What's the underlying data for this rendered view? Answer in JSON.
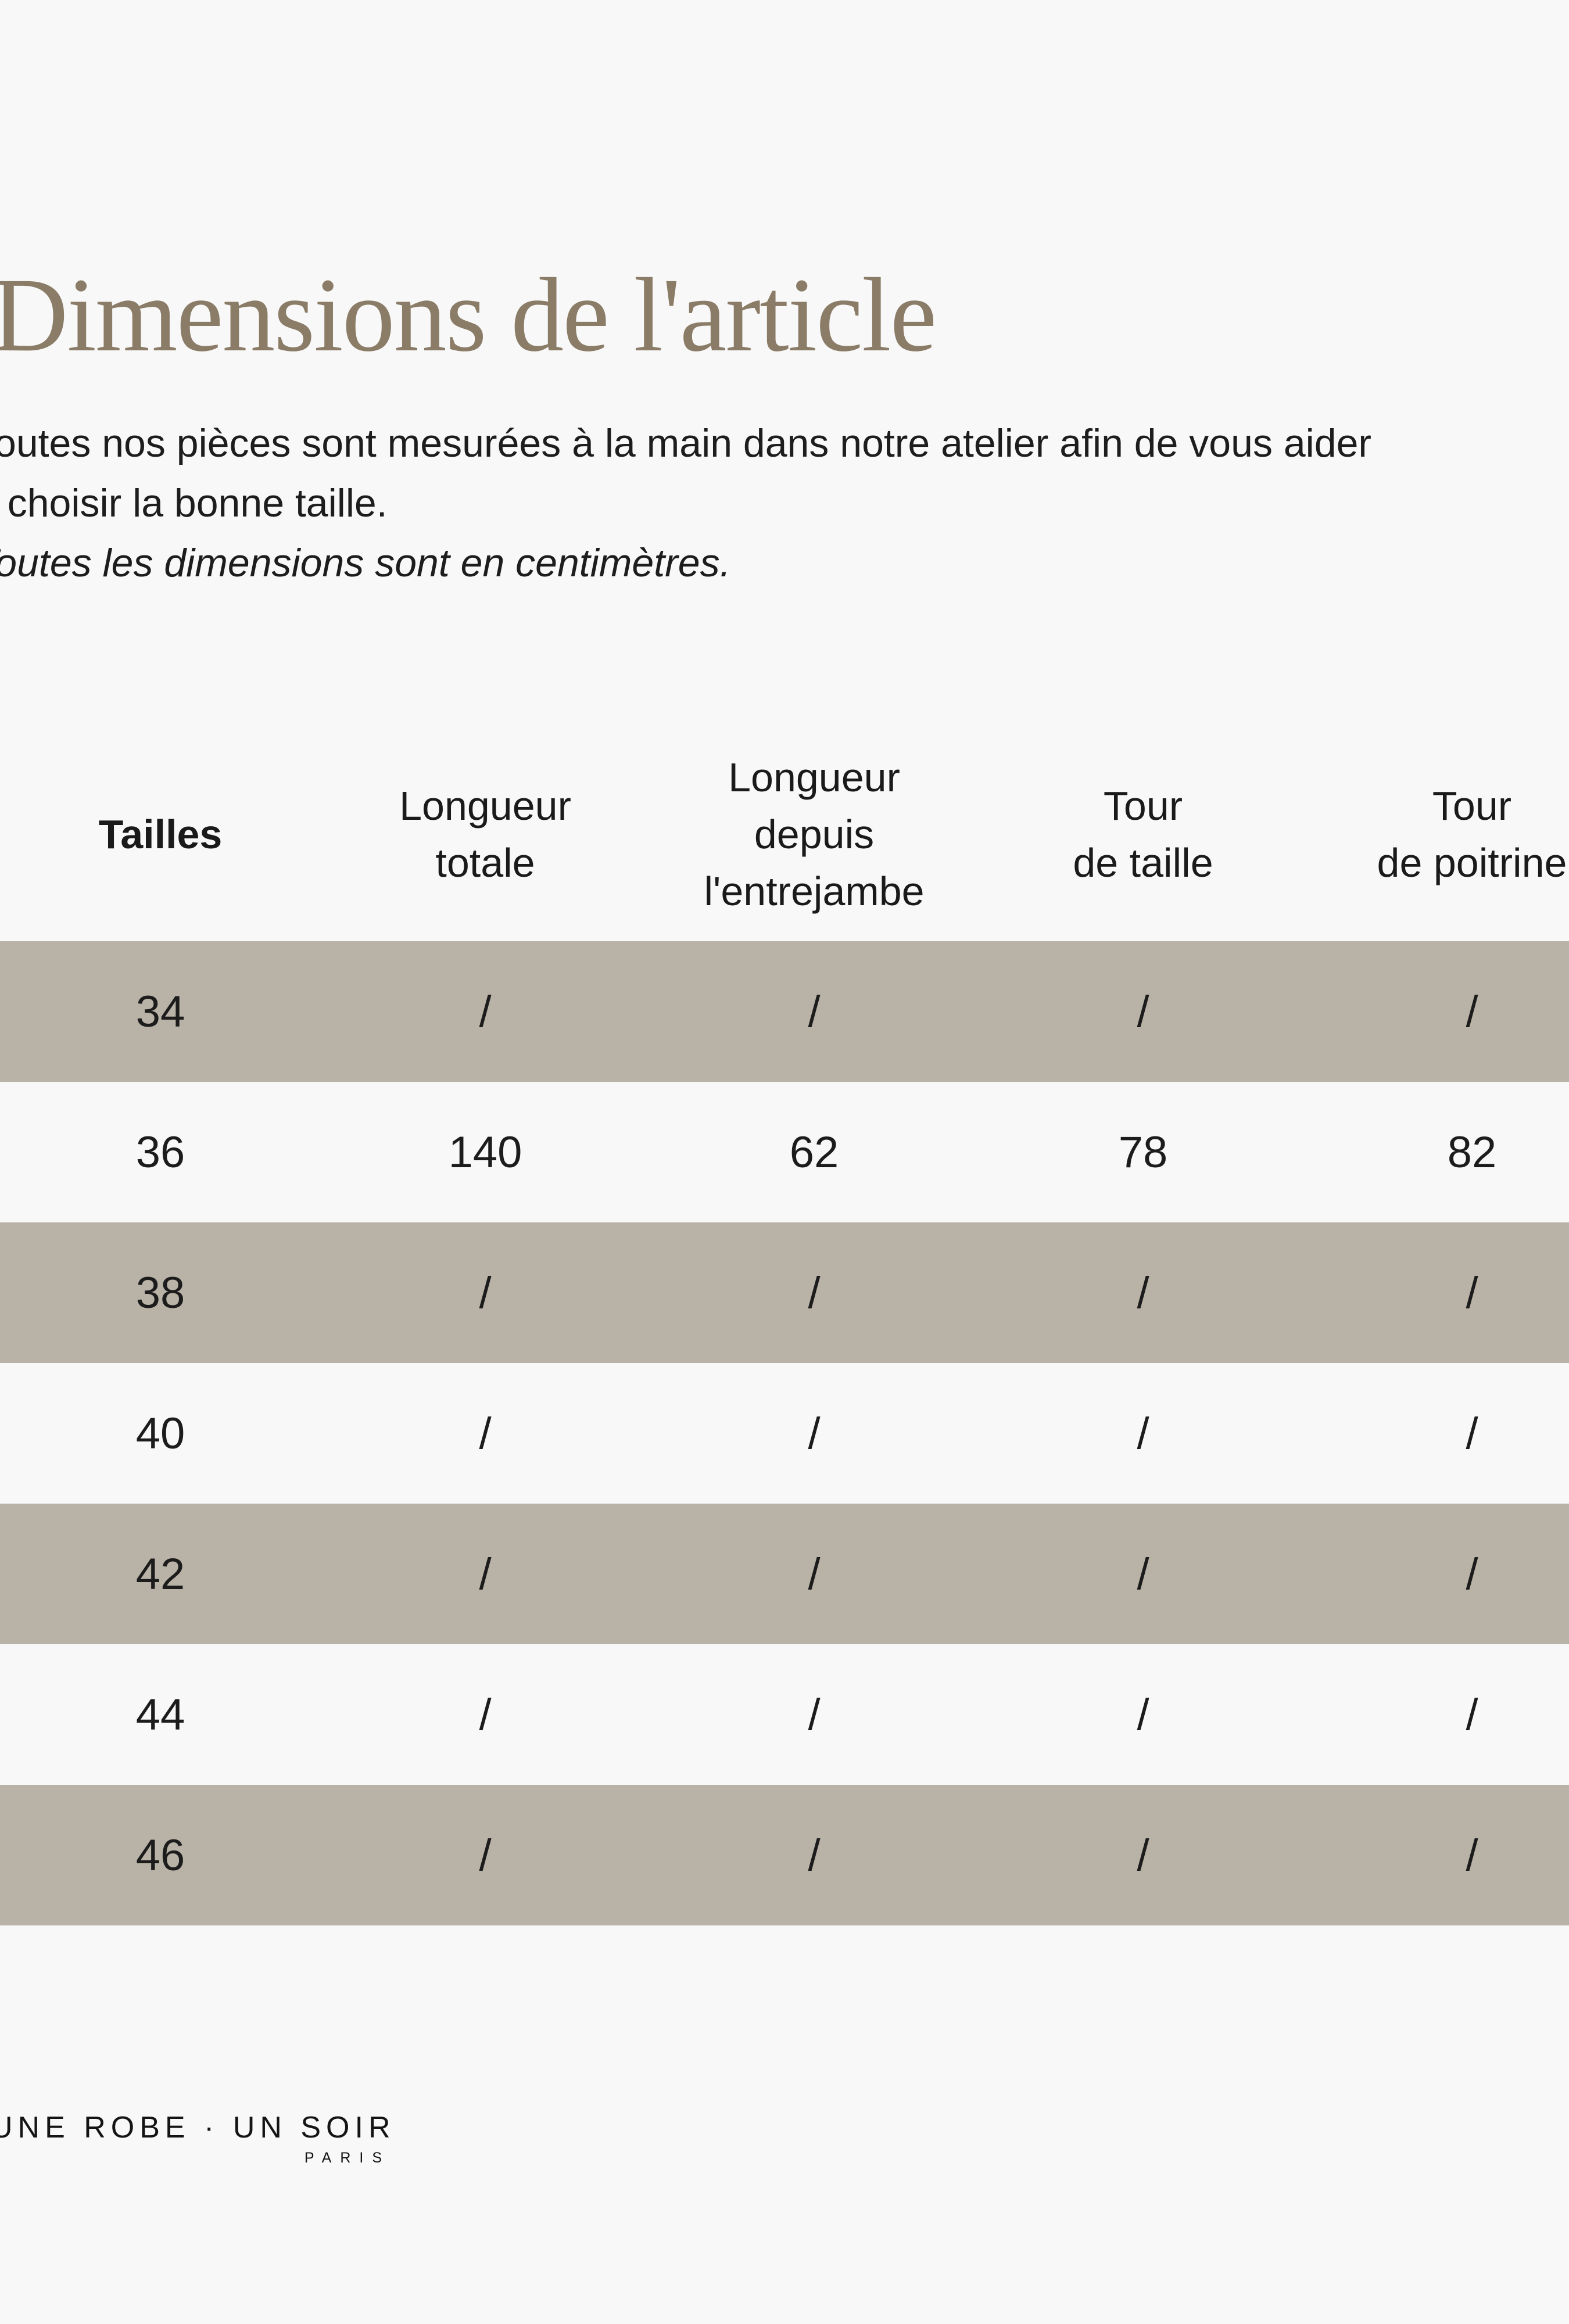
{
  "page": {
    "background_color": "#f8f8f8",
    "title": "Dimensions de l'article",
    "title_color": "#8b7c67",
    "text_color": "#1d1d1d"
  },
  "intro": {
    "line1": "Toutes nos pièces sont mesurées à la main dans notre atelier afin de vous aider",
    "line2": "à choisir la bonne taille.",
    "note_italic": "Toutes les dimensions sont en centimètres."
  },
  "size_table": {
    "highlight_row_color": "#b9b2a6",
    "columns": [
      "Tailles",
      "Longueur\ntotale",
      "Longueur\ndepuis\nl'entrejambe",
      "Tour\nde taille",
      "Tour\nde poitrine"
    ],
    "rows": [
      {
        "size": "34",
        "values": [
          "/",
          "/",
          "/",
          "/"
        ]
      },
      {
        "size": "36",
        "values": [
          "140",
          "62",
          "78",
          "82"
        ]
      },
      {
        "size": "38",
        "values": [
          "/",
          "/",
          "/",
          "/"
        ]
      },
      {
        "size": "40",
        "values": [
          "/",
          "/",
          "/",
          "/"
        ]
      },
      {
        "size": "42",
        "values": [
          "/",
          "/",
          "/",
          "/"
        ]
      },
      {
        "size": "44",
        "values": [
          "/",
          "/",
          "/",
          "/"
        ]
      },
      {
        "size": "46",
        "values": [
          "/",
          "/",
          "/",
          "/"
        ]
      }
    ]
  },
  "footer": {
    "brand_wordmark": "UNE ROBE · UN SOIR",
    "brand_city": "PARIS"
  }
}
